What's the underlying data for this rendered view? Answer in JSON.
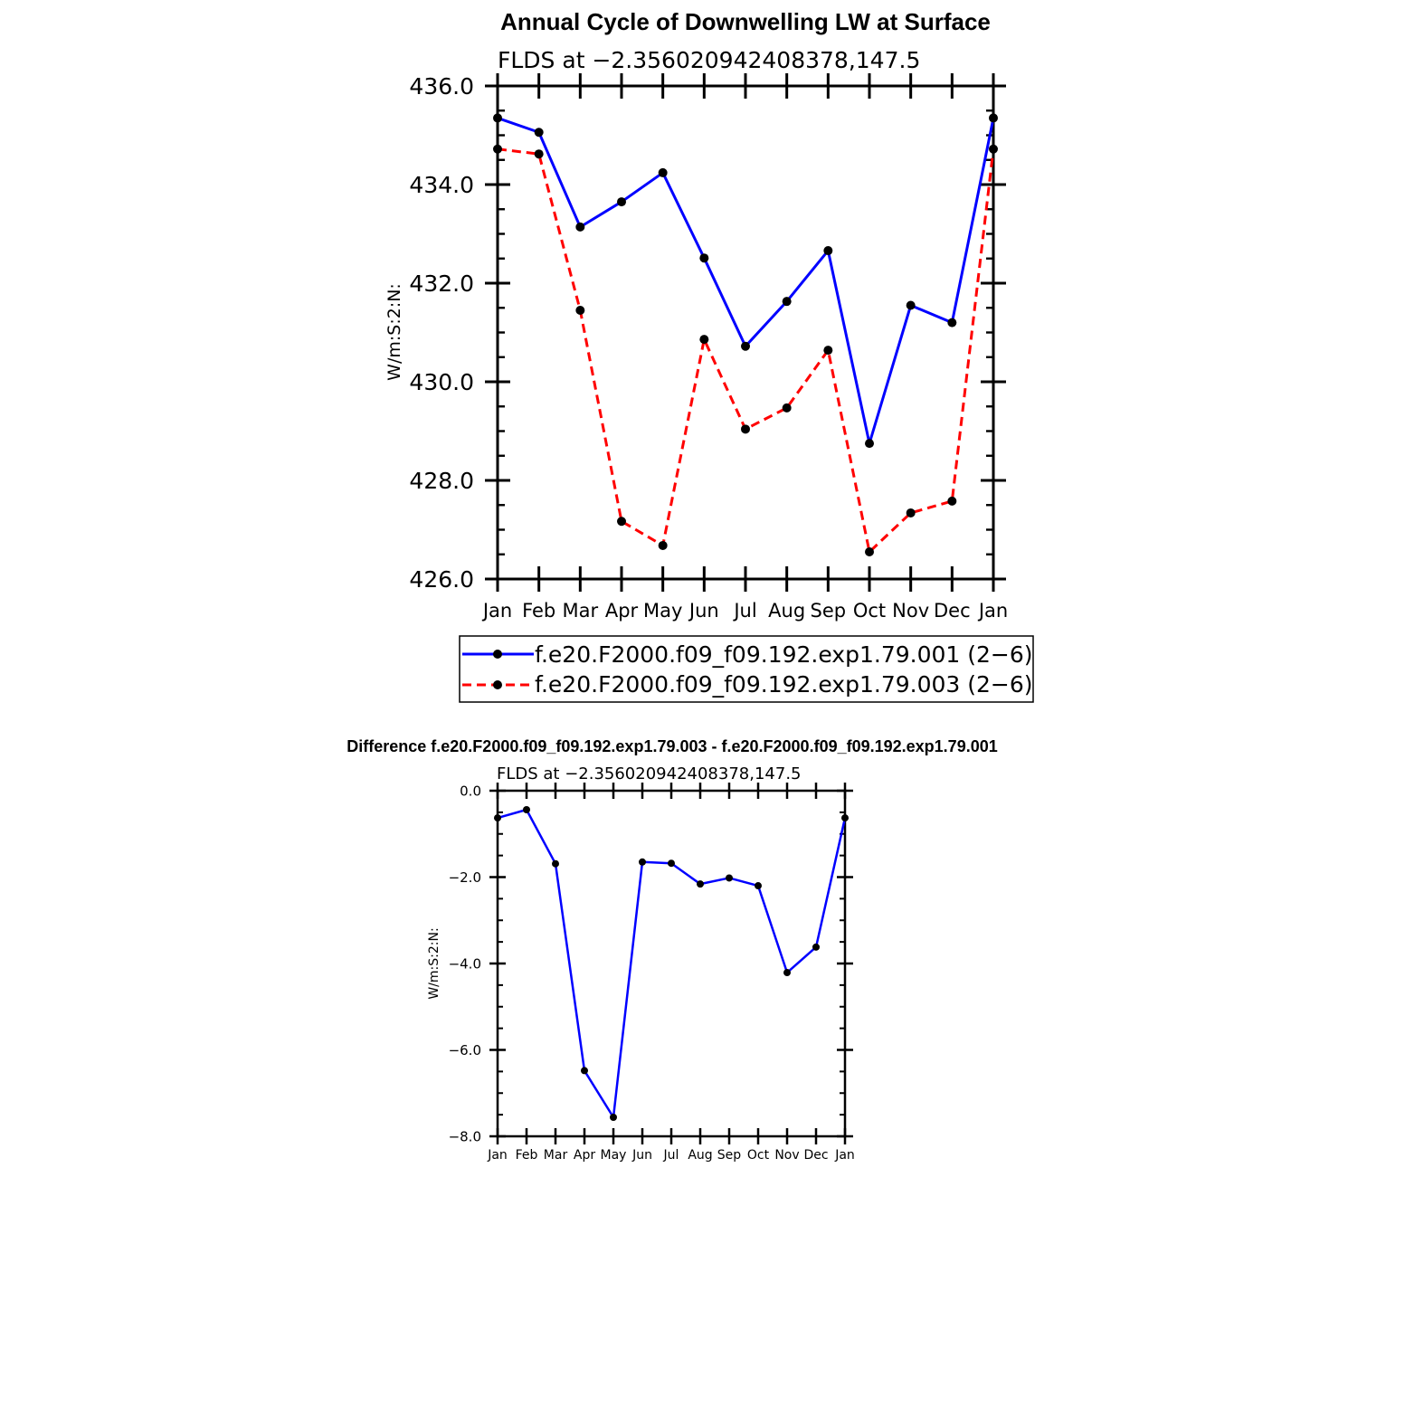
{
  "chart_data": [
    {
      "type": "line",
      "title": "Annual Cycle of Downwelling LW at Surface",
      "subtitle": "FLDS at −2.356020942408378,147.5",
      "ylabel": "W/m:S:2:N:",
      "xlabel": "",
      "categories": [
        "Jan",
        "Feb",
        "Mar",
        "Apr",
        "May",
        "Jun",
        "Jul",
        "Aug",
        "Sep",
        "Oct",
        "Nov",
        "Dec",
        "Jan"
      ],
      "ylim": [
        426.0,
        436.0
      ],
      "y_ticks": [
        "426.0",
        "428.0",
        "430.0",
        "432.0",
        "434.0",
        "436.0"
      ],
      "grid": false,
      "legend_position": "bottom",
      "series": [
        {
          "name": "f.e20.F2000.f09_f09.192.exp1.79.001 (2−6)",
          "color": "#0000ff",
          "dash": "solid",
          "marker": "filled-circle",
          "values": [
            435.35,
            435.06,
            433.14,
            433.65,
            434.24,
            432.51,
            430.72,
            431.63,
            432.66,
            428.75,
            431.55,
            431.2,
            435.35
          ]
        },
        {
          "name": "f.e20.F2000.f09_f09.192.exp1.79.003 (2−6)",
          "color": "#ff0000",
          "dash": "dashed",
          "marker": "filled-circle",
          "values": [
            434.72,
            434.62,
            431.45,
            427.17,
            426.68,
            430.86,
            429.04,
            429.47,
            430.64,
            426.55,
            427.34,
            427.58,
            434.72
          ]
        }
      ]
    },
    {
      "type": "line",
      "title": "Difference f.e20.F2000.f09_f09.192.exp1.79.003 - f.e20.F2000.f09_f09.192.exp1.79.001",
      "subtitle": "FLDS at −2.356020942408378,147.5",
      "ylabel": "W/m:S:2:N:",
      "xlabel": "",
      "categories": [
        "Jan",
        "Feb",
        "Mar",
        "Apr",
        "May",
        "Jun",
        "Jul",
        "Aug",
        "Sep",
        "Oct",
        "Nov",
        "Dec",
        "Jan"
      ],
      "ylim": [
        -8.0,
        0.0
      ],
      "y_ticks": [
        "−8.0",
        "−6.0",
        "−4.0",
        "−2.0",
        "0.0"
      ],
      "grid": false,
      "series": [
        {
          "color": "#0000ff",
          "dash": "solid",
          "marker": "filled-circle",
          "values": [
            -0.63,
            -0.44,
            -1.69,
            -6.48,
            -7.56,
            -1.65,
            -1.68,
            -2.16,
            -2.02,
            -2.2,
            -4.21,
            -3.62,
            -0.63
          ]
        }
      ]
    }
  ]
}
